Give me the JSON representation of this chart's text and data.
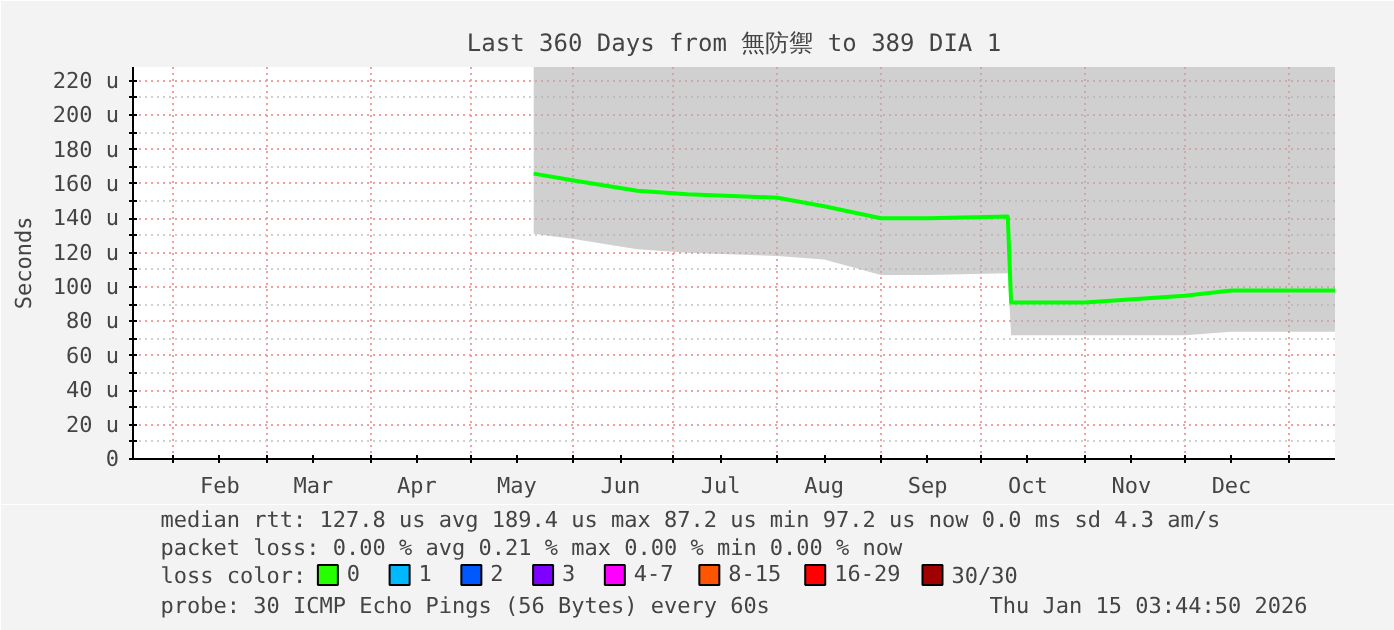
{
  "chart_data": {
    "type": "line",
    "title": "Last 360 Days from 無防禦 to 389 DIA 1",
    "ylabel": "Seconds",
    "x": [
      "2025-05-20",
      "2025-06-01",
      "2025-06-20",
      "2025-07-05",
      "2025-08-01",
      "2025-08-15",
      "2025-09-01",
      "2025-09-15",
      "2025-10-09",
      "2025-10-10",
      "2025-11-01",
      "2025-12-01",
      "2025-12-15",
      "2026-01-15"
    ],
    "series": [
      {
        "color": "#00ff00",
        "values": [
          166,
          162,
          156,
          154,
          152,
          147,
          140,
          140,
          141,
          91,
          91,
          95,
          98,
          98
        ],
        "lower": [
          131,
          128,
          122,
          120,
          118,
          116,
          107,
          107,
          108,
          72,
          72,
          72,
          74,
          74
        ],
        "upper": [
          228,
          228,
          228,
          228,
          228,
          228,
          228,
          228,
          228,
          228,
          228,
          228,
          228,
          228
        ]
      },
      {
        "name": "0",
        "color": "#26ff00",
        "values": [
          null,
          null,
          null,
          null,
          null,
          null,
          null,
          null,
          null,
          null,
          null,
          null,
          null,
          null
        ]
      },
      {
        "name": "1",
        "color": "#00b8ff",
        "values": [
          null,
          null,
          null,
          null,
          null,
          null,
          null,
          null,
          null,
          null,
          null,
          null,
          null,
          null
        ]
      },
      {
        "name": "2",
        "color": "#0059ff",
        "values": [
          null,
          null,
          null,
          null,
          null,
          null,
          null,
          null,
          null,
          null,
          null,
          null,
          null,
          null
        ]
      },
      {
        "name": "3",
        "color": "#7e00ff",
        "values": [
          null,
          null,
          null,
          null,
          null,
          null,
          null,
          null,
          null,
          null,
          null,
          null,
          null,
          null
        ]
      },
      {
        "name": "4-7",
        "color": "#ff00ff",
        "values": [
          null,
          null,
          null,
          null,
          null,
          null,
          null,
          null,
          null,
          null,
          null,
          null,
          null,
          null
        ]
      },
      {
        "name": "8-15",
        "color": "#ff5500",
        "values": [
          null,
          null,
          null,
          null,
          null,
          null,
          null,
          null,
          null,
          null,
          null,
          null,
          null,
          null
        ]
      },
      {
        "name": "16-29",
        "color": "#ff0000",
        "values": [
          null,
          null,
          null,
          null,
          null,
          null,
          null,
          null,
          null,
          null,
          null,
          null,
          null,
          null
        ]
      },
      {
        "name": "30/30",
        "color": "#a10000",
        "values": [
          null,
          null,
          null,
          null,
          null,
          null,
          null,
          null,
          null,
          null,
          null,
          null,
          null,
          null
        ]
      }
    ],
    "legend_title": "loss color:",
    "xlim": [
      "2025-01-20",
      "2026-01-15"
    ],
    "xticks": [
      {
        "value": "2025-02-01",
        "label": null
      },
      {
        "value": "2025-02-15",
        "label": "Feb"
      },
      {
        "value": "2025-03-01",
        "label": null
      },
      {
        "value": "2025-03-15",
        "label": "Mar"
      },
      {
        "value": "2025-04-01",
        "label": null
      },
      {
        "value": "2025-04-15",
        "label": "Apr"
      },
      {
        "value": "2025-05-01",
        "label": null
      },
      {
        "value": "2025-05-15",
        "label": "May"
      },
      {
        "value": "2025-06-01",
        "label": null
      },
      {
        "value": "2025-06-15",
        "label": "Jun"
      },
      {
        "value": "2025-07-01",
        "label": null
      },
      {
        "value": "2025-07-15",
        "label": "Jul"
      },
      {
        "value": "2025-08-01",
        "label": null
      },
      {
        "value": "2025-08-15",
        "label": "Aug"
      },
      {
        "value": "2025-09-01",
        "label": null
      },
      {
        "value": "2025-09-15",
        "label": "Sep"
      },
      {
        "value": "2025-10-01",
        "label": null
      },
      {
        "value": "2025-10-15",
        "label": "Oct"
      },
      {
        "value": "2025-11-01",
        "label": null
      },
      {
        "value": "2025-11-15",
        "label": "Nov"
      },
      {
        "value": "2025-12-01",
        "label": null
      },
      {
        "value": "2025-12-15",
        "label": "Dec"
      },
      {
        "value": "2026-01-01",
        "label": null
      }
    ],
    "ylim": [
      0,
      228
    ],
    "yticks": [
      0,
      {
        "value": 10,
        "label": null
      },
      {
        "value": 20,
        "label": "20 u"
      },
      {
        "value": 30,
        "label": null
      },
      {
        "value": 40,
        "label": "40 u"
      },
      {
        "value": 50,
        "label": null
      },
      {
        "value": 60,
        "label": "60 u"
      },
      {
        "value": 70,
        "label": null
      },
      {
        "value": 80,
        "label": "80 u"
      },
      {
        "value": 90,
        "label": null
      },
      {
        "value": 100,
        "label": "100 u"
      },
      {
        "value": 110,
        "label": null
      },
      {
        "value": 120,
        "label": "120 u"
      },
      {
        "value": 130,
        "label": null
      },
      {
        "value": 140,
        "label": "140 u"
      },
      {
        "value": 150,
        "label": null
      },
      {
        "value": 160,
        "label": "160 u"
      },
      {
        "value": 170,
        "label": null
      },
      {
        "value": 180,
        "label": "180 u"
      },
      {
        "value": 190,
        "label": null
      },
      {
        "value": 200,
        "label": "200 u"
      },
      {
        "value": 210,
        "label": null
      },
      {
        "value": 220,
        "label": "220 u"
      }
    ],
    "grid": true,
    "legend": "bottom",
    "marker": "none",
    "line_style": "solid",
    "annotations": [
      "median rtt:  127.8 us avg  189.4 us max  87.2 us min  97.2 us now  0.0 ms sd  4.3   am/s",
      "packet loss: 0.00 % avg  0.21 % max  0.00 % min  0.00 % now",
      "probe:       30 ICMP Echo Pings (56 Bytes) every 60s",
      "Thu Jan 15 03:44:50 2026"
    ]
  }
}
